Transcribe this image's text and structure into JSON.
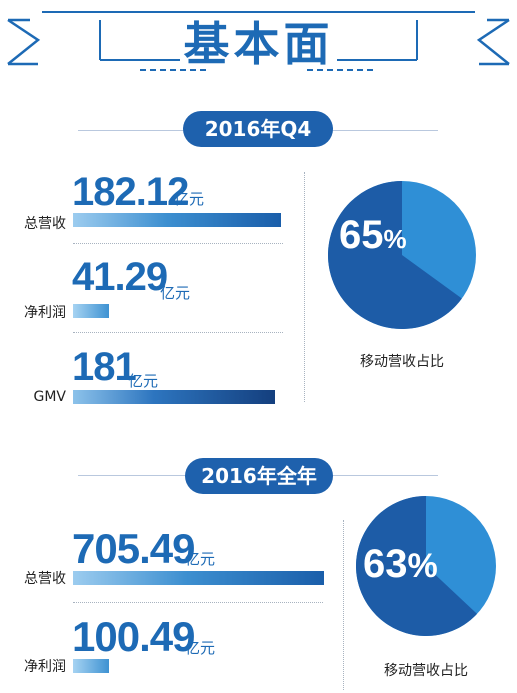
{
  "title": "基本面",
  "sections": [
    {
      "period": "2016年Q4",
      "stats": [
        {
          "label": "总营收",
          "value": "182.12",
          "unit": "亿元"
        },
        {
          "label": "净利润",
          "value": "41.29",
          "unit": "亿元"
        },
        {
          "label": "GMV",
          "value": "181",
          "unit": "亿元"
        }
      ],
      "pie": {
        "percent_text": "65",
        "percent_sign": "%",
        "fraction": 0.65,
        "label": "移动营收占比"
      }
    },
    {
      "period": "2016年全年",
      "stats": [
        {
          "label": "总营收",
          "value": "705.49",
          "unit": "亿元"
        },
        {
          "label": "净利润",
          "value": "100.49",
          "unit": "亿元"
        }
      ],
      "pie": {
        "percent_text": "63",
        "percent_sign": "%",
        "fraction": 0.63,
        "label": "移动营收占比"
      }
    }
  ],
  "colors": {
    "primary": "#1e61ad",
    "pie_main": "#1d5ca7",
    "pie_rest": "#2f8fd6"
  }
}
